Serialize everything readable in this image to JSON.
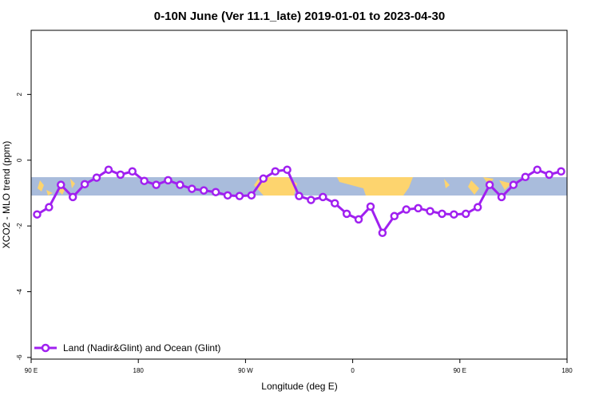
{
  "chart_data": {
    "type": "line",
    "title": "0-10N June (Ver 11.1_late)   2019-01-01 to 2023-04-30",
    "x_label": "Longitude (deg E)",
    "y_label": "XCO2 - MLO trend (ppm)",
    "x": [
      95,
      105,
      115,
      125,
      135,
      145,
      155,
      165,
      175,
      185,
      195,
      205,
      215,
      225,
      235,
      245,
      255,
      265,
      275,
      285,
      295,
      305,
      315,
      325,
      335,
      345,
      355,
      365,
      375,
      385,
      395,
      405,
      415,
      425,
      435,
      445,
      455,
      465,
      475,
      485,
      495,
      505,
      515,
      525,
      535
    ],
    "series": [
      {
        "name": "Land (Nadir&Glint) and Ocean (Glint)",
        "color": "#a020f0",
        "values": [
          -1.65,
          -1.43,
          -0.75,
          -1.12,
          -0.73,
          -0.53,
          -0.29,
          -0.44,
          -0.34,
          -0.63,
          -0.75,
          -0.61,
          -0.75,
          -0.87,
          -0.92,
          -0.97,
          -1.07,
          -1.09,
          -1.07,
          -0.56,
          -0.34,
          -0.29,
          -1.09,
          -1.21,
          -1.12,
          -1.31,
          -1.63,
          -1.8,
          -1.41,
          -2.21,
          -1.7,
          -1.5,
          -1.46,
          -1.55,
          -1.63,
          -1.65,
          -1.63,
          -1.43,
          -0.75,
          -1.12,
          -0.75,
          -0.51,
          -0.29,
          -0.44,
          -0.34
        ]
      }
    ],
    "xlim": [
      90,
      540
    ],
    "xticks": [
      {
        "value": 90,
        "label": "90 E"
      },
      180,
      {
        "value": 270,
        "label": "90 W"
      },
      {
        "value": 360,
        "label": "0"
      },
      {
        "value": 450,
        "label": "90 E"
      },
      {
        "value": 540,
        "label": "180"
      }
    ],
    "ylim": [
      -6.05,
      3.95
    ],
    "yticks": [
      2,
      0,
      -2,
      -4,
      -6
    ],
    "legend": "bottomleft"
  }
}
